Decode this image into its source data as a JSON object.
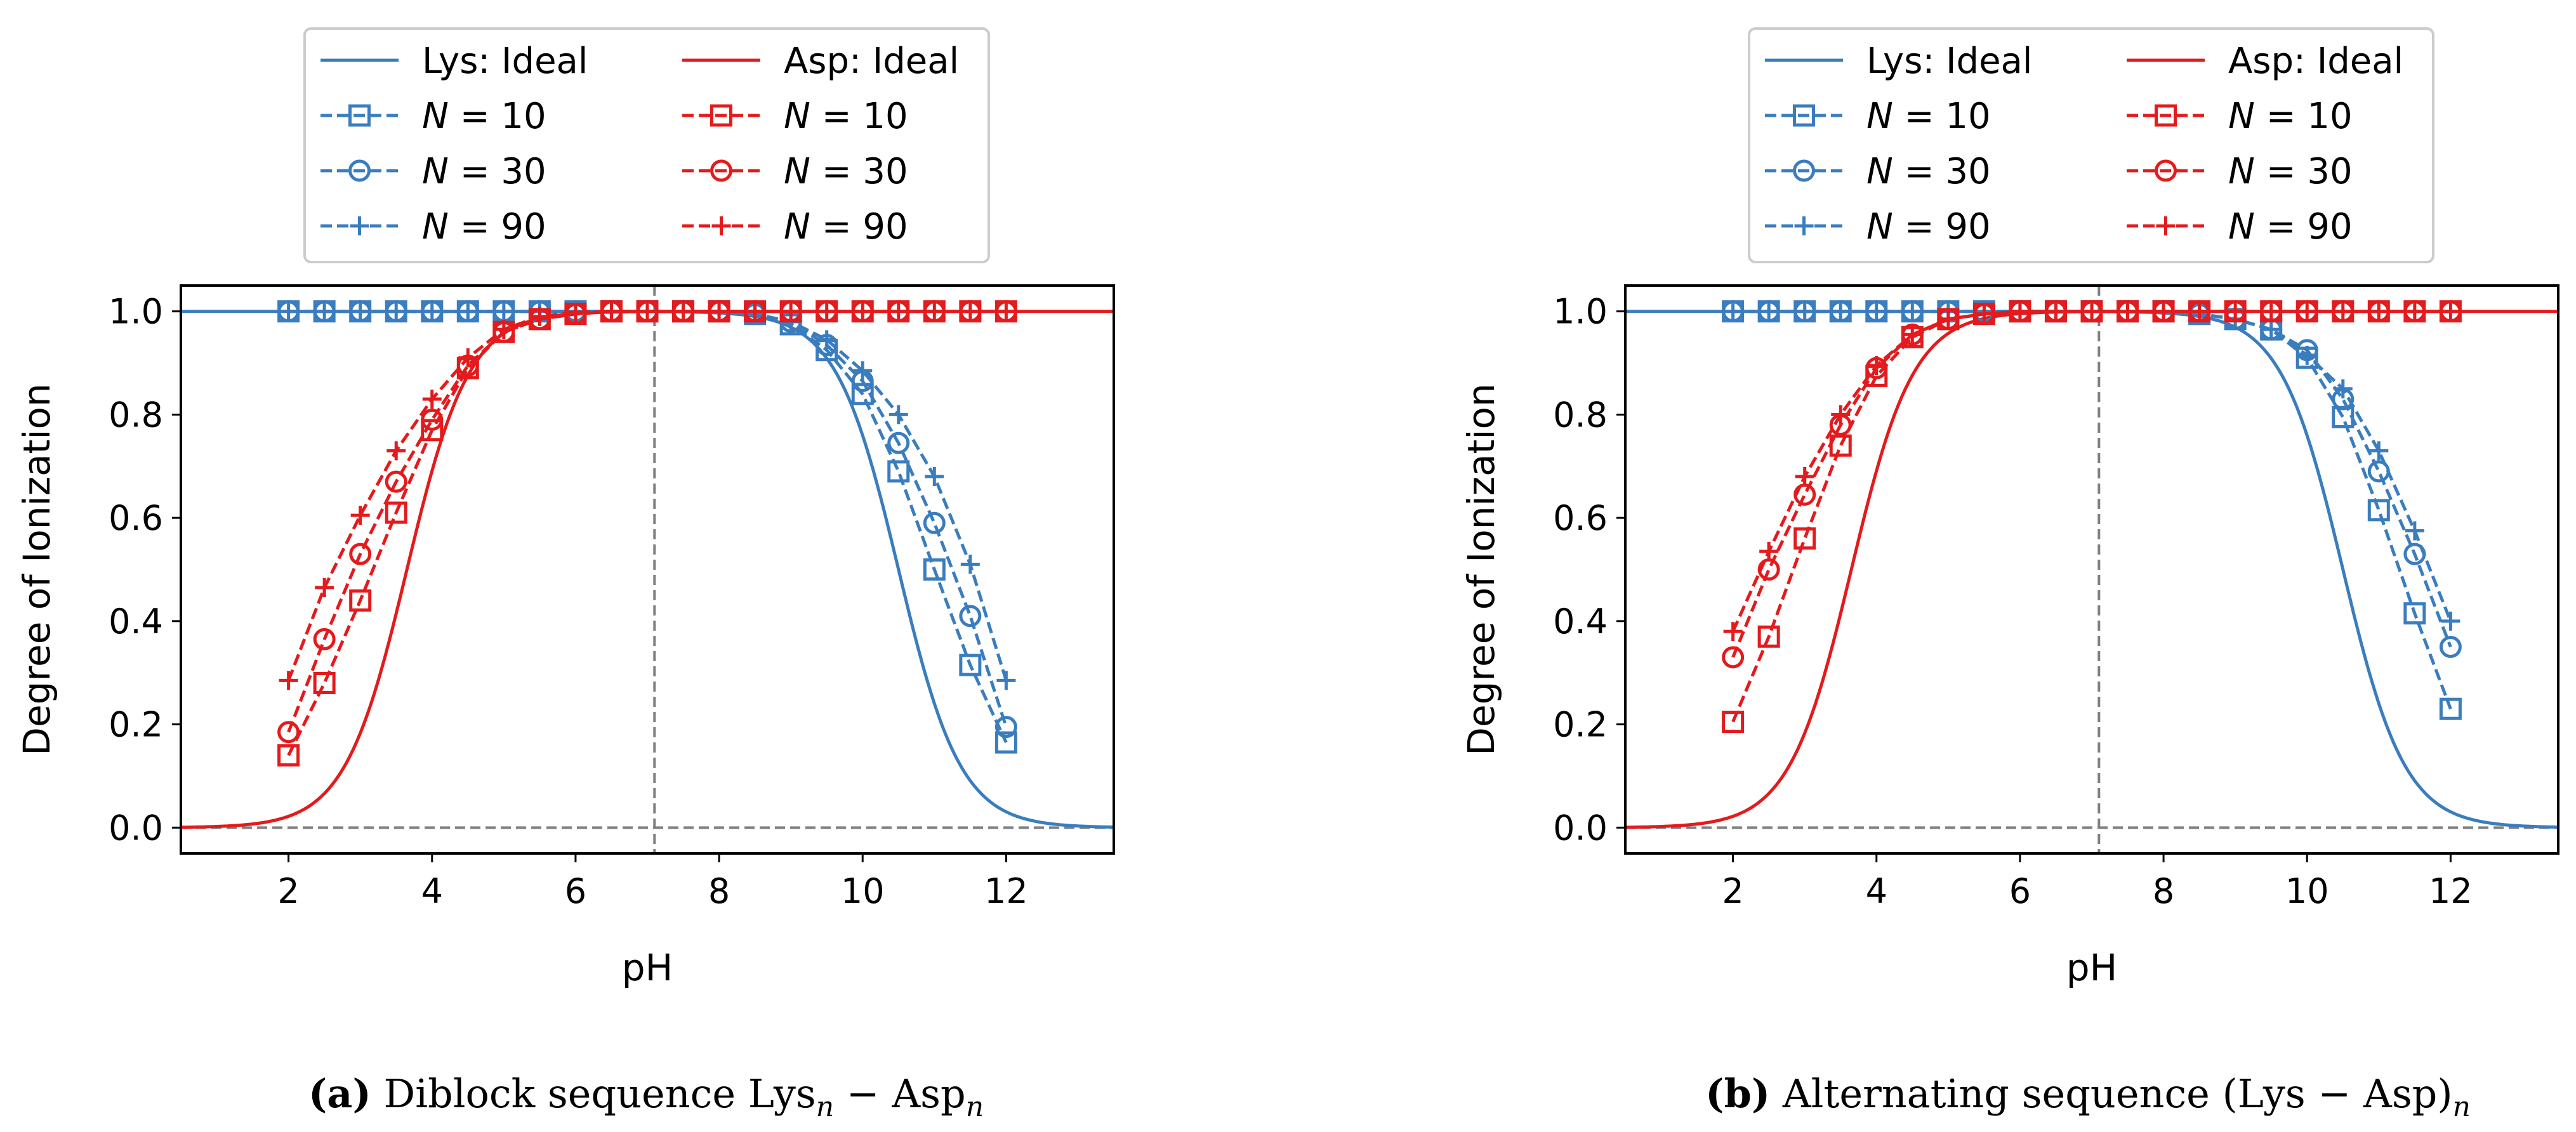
{
  "colors": {
    "lys": "#3a7dbf",
    "asp": "#e41a1c",
    "guide": "#808080",
    "frame": "#000000"
  },
  "chart_data": [
    {
      "id": "a",
      "type": "line",
      "xlabel": "pH",
      "ylabel": "Degree of Ionization",
      "xlim": [
        0.5,
        13.5
      ],
      "ylim": [
        -0.05,
        1.05
      ],
      "xticks": [
        2,
        4,
        6,
        8,
        10,
        12
      ],
      "yticks": [
        0.0,
        0.2,
        0.4,
        0.6,
        0.8,
        1.0
      ],
      "xtick_labels": [
        "2",
        "4",
        "6",
        "8",
        "10",
        "12"
      ],
      "ytick_labels": [
        "0.0",
        "0.2",
        "0.4",
        "0.6",
        "0.8",
        "1.0"
      ],
      "guides": {
        "vline_x": 7.1,
        "hline_y": 0.0,
        "style": "dashed"
      },
      "ideal": {
        "lys_pka": 10.5,
        "asp_pka": 3.65
      },
      "legend": {
        "placement": "above-axes",
        "columns": [
          [
            "Lys: Ideal",
            "N = 10",
            "N = 30",
            "N = 90"
          ],
          [
            "Asp: Ideal",
            "N = 10",
            "N = 30",
            "N = 90"
          ]
        ]
      },
      "caption": {
        "label": "(a)",
        "text": " Diblock sequence Lys",
        "sub1": "n",
        "mid": " − Asp",
        "sub2": "n"
      },
      "series": [
        {
          "name": "Lys: Ideal",
          "residue": "Lys",
          "style": "ideal"
        },
        {
          "name": "Asp: Ideal",
          "residue": "Asp",
          "style": "ideal"
        },
        {
          "name": "N = 10",
          "residue": "Lys",
          "marker": "square",
          "x": [
            2,
            2.5,
            3,
            3.5,
            4,
            4.5,
            5,
            5.5,
            6,
            6.5,
            7,
            7.5,
            8,
            8.5,
            9,
            9.5,
            10,
            10.5,
            11,
            11.5,
            12
          ],
          "y": [
            1.0,
            1.0,
            1.0,
            1.0,
            1.0,
            1.0,
            1.0,
            1.0,
            1.0,
            1.0,
            1.0,
            1.0,
            1.0,
            0.995,
            0.975,
            0.925,
            0.84,
            0.69,
            0.5,
            0.315,
            0.165
          ]
        },
        {
          "name": "N = 30",
          "residue": "Lys",
          "marker": "circle",
          "x": [
            2,
            2.5,
            3,
            3.5,
            4,
            4.5,
            5,
            5.5,
            6,
            6.5,
            7,
            7.5,
            8,
            8.5,
            9,
            9.5,
            10,
            10.5,
            11,
            11.5,
            12
          ],
          "y": [
            1.0,
            1.0,
            1.0,
            1.0,
            1.0,
            1.0,
            1.0,
            1.0,
            1.0,
            1.0,
            1.0,
            1.0,
            1.0,
            0.995,
            0.98,
            0.935,
            0.865,
            0.745,
            0.59,
            0.41,
            0.195
          ]
        },
        {
          "name": "N = 90",
          "residue": "Lys",
          "marker": "plus",
          "x": [
            2,
            2.5,
            3,
            3.5,
            4,
            4.5,
            5,
            5.5,
            6,
            6.5,
            7,
            7.5,
            8,
            8.5,
            9,
            9.5,
            10,
            10.5,
            11,
            11.5,
            12
          ],
          "y": [
            1.0,
            1.0,
            1.0,
            1.0,
            1.0,
            1.0,
            1.0,
            1.0,
            1.0,
            1.0,
            1.0,
            1.0,
            1.0,
            0.995,
            0.98,
            0.945,
            0.885,
            0.8,
            0.68,
            0.51,
            0.285
          ]
        },
        {
          "name": "N = 10",
          "residue": "Asp",
          "marker": "square",
          "x": [
            2,
            2.5,
            3,
            3.5,
            4,
            4.5,
            5,
            5.5,
            6,
            6.5,
            7,
            7.5,
            8,
            8.5,
            9,
            9.5,
            10,
            10.5,
            11,
            11.5,
            12
          ],
          "y": [
            0.14,
            0.28,
            0.44,
            0.61,
            0.77,
            0.89,
            0.96,
            0.985,
            0.995,
            1.0,
            1.0,
            1.0,
            1.0,
            1.0,
            1.0,
            1.0,
            1.0,
            1.0,
            1.0,
            1.0,
            1.0
          ]
        },
        {
          "name": "N = 30",
          "residue": "Asp",
          "marker": "circle",
          "x": [
            2,
            2.5,
            3,
            3.5,
            4,
            4.5,
            5,
            5.5,
            6,
            6.5,
            7,
            7.5,
            8,
            8.5,
            9,
            9.5,
            10,
            10.5,
            11,
            11.5,
            12
          ],
          "y": [
            0.185,
            0.365,
            0.53,
            0.67,
            0.79,
            0.895,
            0.96,
            0.985,
            0.995,
            1.0,
            1.0,
            1.0,
            1.0,
            1.0,
            1.0,
            1.0,
            1.0,
            1.0,
            1.0,
            1.0,
            1.0
          ]
        },
        {
          "name": "N = 90",
          "residue": "Asp",
          "marker": "plus",
          "x": [
            2,
            2.5,
            3,
            3.5,
            4,
            4.5,
            5,
            5.5,
            6,
            6.5,
            7,
            7.5,
            8,
            8.5,
            9,
            9.5,
            10,
            10.5,
            11,
            11.5,
            12
          ],
          "y": [
            0.285,
            0.465,
            0.605,
            0.73,
            0.83,
            0.91,
            0.965,
            0.99,
            0.998,
            1.0,
            1.0,
            1.0,
            1.0,
            1.0,
            1.0,
            1.0,
            1.0,
            1.0,
            1.0,
            1.0,
            1.0
          ]
        }
      ]
    },
    {
      "id": "b",
      "type": "line",
      "xlabel": "pH",
      "ylabel": "Degree of Ionization",
      "xlim": [
        0.5,
        13.5
      ],
      "ylim": [
        -0.05,
        1.05
      ],
      "xticks": [
        2,
        4,
        6,
        8,
        10,
        12
      ],
      "yticks": [
        0.0,
        0.2,
        0.4,
        0.6,
        0.8,
        1.0
      ],
      "xtick_labels": [
        "2",
        "4",
        "6",
        "8",
        "10",
        "12"
      ],
      "ytick_labels": [
        "0.0",
        "0.2",
        "0.4",
        "0.6",
        "0.8",
        "1.0"
      ],
      "guides": {
        "vline_x": 7.1,
        "hline_y": 0.0,
        "style": "dashed"
      },
      "ideal": {
        "lys_pka": 10.5,
        "asp_pka": 3.65
      },
      "legend": {
        "placement": "above-axes",
        "columns": [
          [
            "Lys: Ideal",
            "N = 10",
            "N = 30",
            "N = 90"
          ],
          [
            "Asp: Ideal",
            "N = 10",
            "N = 30",
            "N = 90"
          ]
        ]
      },
      "caption": {
        "label": "(b)",
        "text": " Alternating sequence (Lys − Asp)",
        "sub1": "n",
        "mid": "",
        "sub2": ""
      },
      "series": [
        {
          "name": "Lys: Ideal",
          "residue": "Lys",
          "style": "ideal"
        },
        {
          "name": "Asp: Ideal",
          "residue": "Asp",
          "style": "ideal"
        },
        {
          "name": "N = 10",
          "residue": "Lys",
          "marker": "square",
          "x": [
            2,
            2.5,
            3,
            3.5,
            4,
            4.5,
            5,
            5.5,
            6,
            6.5,
            7,
            7.5,
            8,
            8.5,
            9,
            9.5,
            10,
            10.5,
            11,
            11.5,
            12
          ],
          "y": [
            1.0,
            1.0,
            1.0,
            1.0,
            1.0,
            1.0,
            1.0,
            1.0,
            1.0,
            1.0,
            1.0,
            1.0,
            1.0,
            0.995,
            0.985,
            0.965,
            0.91,
            0.795,
            0.615,
            0.415,
            0.23
          ]
        },
        {
          "name": "N = 30",
          "residue": "Lys",
          "marker": "circle",
          "x": [
            2,
            2.5,
            3,
            3.5,
            4,
            4.5,
            5,
            5.5,
            6,
            6.5,
            7,
            7.5,
            8,
            8.5,
            9,
            9.5,
            10,
            10.5,
            11,
            11.5,
            12
          ],
          "y": [
            1.0,
            1.0,
            1.0,
            1.0,
            1.0,
            1.0,
            1.0,
            1.0,
            1.0,
            1.0,
            1.0,
            1.0,
            1.0,
            0.995,
            0.985,
            0.965,
            0.925,
            0.83,
            0.69,
            0.53,
            0.35
          ]
        },
        {
          "name": "N = 90",
          "residue": "Lys",
          "marker": "plus",
          "x": [
            2,
            2.5,
            3,
            3.5,
            4,
            4.5,
            5,
            5.5,
            6,
            6.5,
            7,
            7.5,
            8,
            8.5,
            9,
            9.5,
            10,
            10.5,
            11,
            11.5,
            12
          ],
          "y": [
            1.0,
            1.0,
            1.0,
            1.0,
            1.0,
            1.0,
            1.0,
            1.0,
            1.0,
            1.0,
            1.0,
            1.0,
            1.0,
            0.995,
            0.985,
            0.965,
            0.915,
            0.85,
            0.73,
            0.575,
            0.4
          ]
        },
        {
          "name": "N = 10",
          "residue": "Asp",
          "marker": "square",
          "x": [
            2,
            2.5,
            3,
            3.5,
            4,
            4.5,
            5,
            5.5,
            6,
            6.5,
            7,
            7.5,
            8,
            8.5,
            9,
            9.5,
            10,
            10.5,
            11,
            11.5,
            12
          ],
          "y": [
            0.205,
            0.37,
            0.56,
            0.74,
            0.875,
            0.95,
            0.985,
            0.995,
            1.0,
            1.0,
            1.0,
            1.0,
            1.0,
            1.0,
            1.0,
            1.0,
            1.0,
            1.0,
            1.0,
            1.0,
            1.0
          ]
        },
        {
          "name": "N = 30",
          "residue": "Asp",
          "marker": "circle",
          "x": [
            2,
            2.5,
            3,
            3.5,
            4,
            4.5,
            5,
            5.5,
            6,
            6.5,
            7,
            7.5,
            8,
            8.5,
            9,
            9.5,
            10,
            10.5,
            11,
            11.5,
            12
          ],
          "y": [
            0.33,
            0.5,
            0.645,
            0.78,
            0.89,
            0.955,
            0.985,
            0.995,
            1.0,
            1.0,
            1.0,
            1.0,
            1.0,
            1.0,
            1.0,
            1.0,
            1.0,
            1.0,
            1.0,
            1.0,
            1.0
          ]
        },
        {
          "name": "N = 90",
          "residue": "Asp",
          "marker": "plus",
          "x": [
            2,
            2.5,
            3,
            3.5,
            4,
            4.5,
            5,
            5.5,
            6,
            6.5,
            7,
            7.5,
            8,
            8.5,
            9,
            9.5,
            10,
            10.5,
            11,
            11.5,
            12
          ],
          "y": [
            0.38,
            0.535,
            0.68,
            0.8,
            0.895,
            0.955,
            0.985,
            0.995,
            1.0,
            1.0,
            1.0,
            1.0,
            1.0,
            1.0,
            1.0,
            1.0,
            1.0,
            1.0,
            1.0,
            1.0,
            1.0
          ]
        }
      ]
    }
  ]
}
